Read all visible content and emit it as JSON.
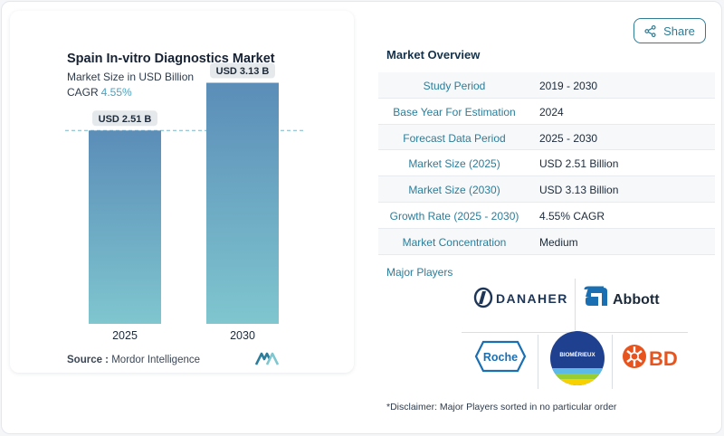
{
  "share": {
    "label": "Share",
    "icon": "share-icon"
  },
  "chart_data": {
    "type": "bar",
    "title": "Spain In-vitro Diagnostics Market",
    "subtitle": "Market Size in USD Billion",
    "cagr_label": "CAGR",
    "cagr_value": "4.55%",
    "categories": [
      "2025",
      "2030"
    ],
    "values": [
      2.51,
      3.13
    ],
    "data_labels": [
      "USD 2.51 B",
      "USD 3.13 B"
    ],
    "ylim": [
      0,
      3.5
    ],
    "reference_line": 2.51,
    "colors": {
      "bar_top": "#5b8db8",
      "bar_bottom": "#7fc6cf",
      "reference_line": "#79b9cc",
      "label_bg": "#e6e9ec"
    }
  },
  "source": {
    "label": "Source :",
    "value": "Mordor Intelligence"
  },
  "overview": {
    "title": "Market Overview",
    "rows": [
      {
        "label": "Study Period",
        "value": "2019 - 2030"
      },
      {
        "label": "Base Year For Estimation",
        "value": "2024"
      },
      {
        "label": "Forecast Data Period",
        "value": "2025 - 2030"
      },
      {
        "label": "Market Size (2025)",
        "value": "USD 2.51 Billion"
      },
      {
        "label": "Market Size (2030)",
        "value": "USD 3.13 Billion"
      },
      {
        "label": "Growth Rate (2025 - 2030)",
        "value": "4.55% CAGR"
      },
      {
        "label": "Market Concentration",
        "value": "Medium"
      }
    ]
  },
  "players": {
    "title": "Major Players",
    "logos": [
      "DANAHER",
      "Abbott",
      "Roche",
      "BIOMÉRIEUX",
      "BD"
    ]
  },
  "disclaimer": "*Disclaimer: Major Players sorted in no particular order"
}
